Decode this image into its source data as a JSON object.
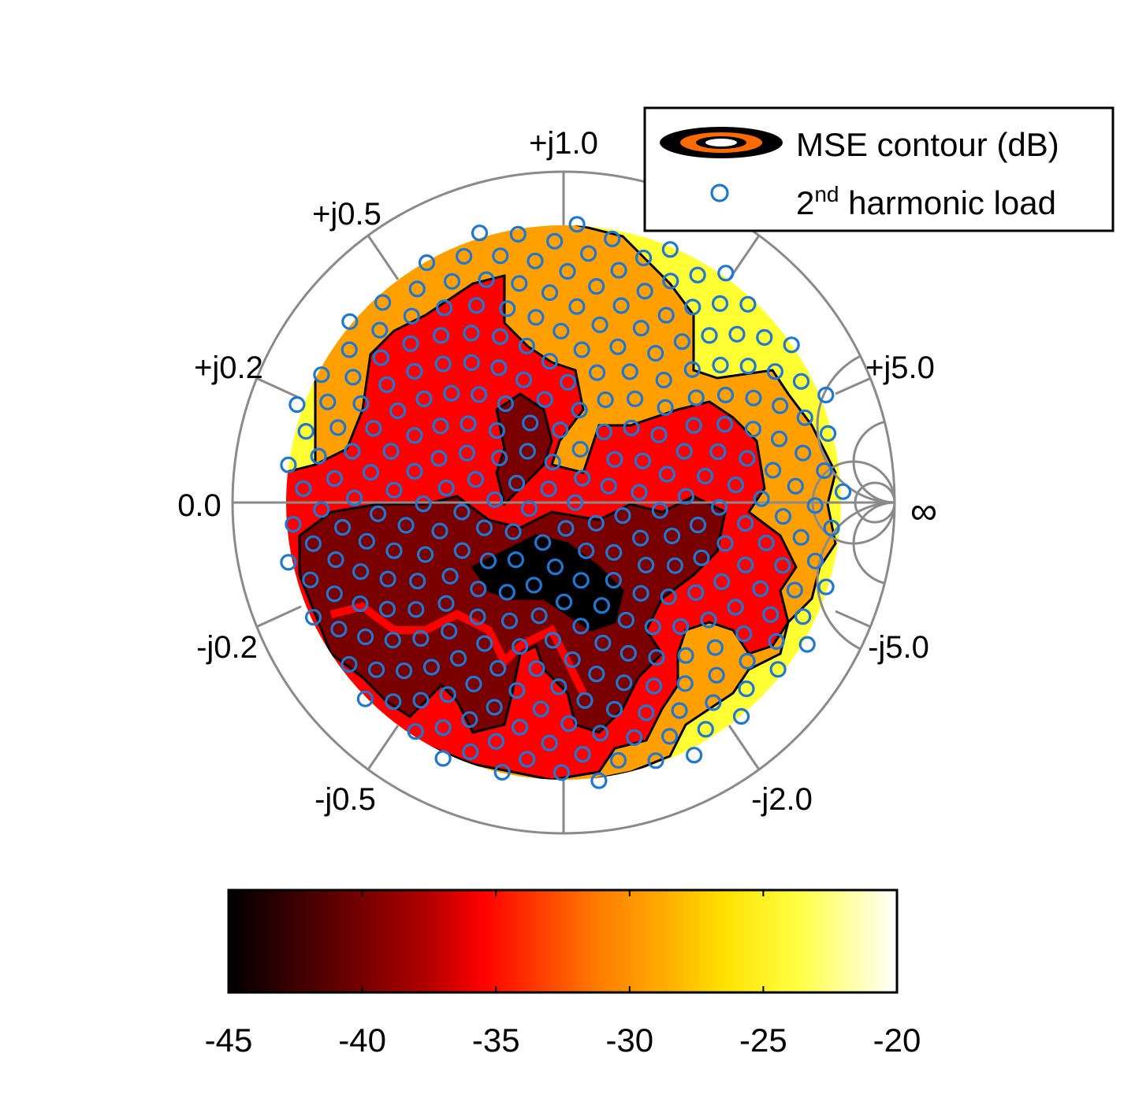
{
  "chart_data": {
    "type": "heatmap",
    "subtype": "smith-chart-contour",
    "title": "",
    "smith_axis_labels": {
      "top": "+j1.0",
      "upper_left": "+j0.5",
      "left_upper": "+j0.2",
      "left": "0.0",
      "left_lower": "-j0.2",
      "lower_left": "-j0.5",
      "lower_right": "-j2.0",
      "right_lower": "-j5.0",
      "right_upper": "+j5.0",
      "right": "∞"
    },
    "legend": {
      "placement": "top-right",
      "contour_label": "MSE contour (dB)",
      "marker_label_base": "2",
      "marker_label_sup": "nd",
      "marker_label_rest": " harmonic load"
    },
    "colorbar": {
      "label": "",
      "ticks": [
        "-45",
        "-40",
        "-35",
        "-30",
        "-25",
        "-20"
      ],
      "range": [
        -45,
        -20
      ],
      "colormap": "hot"
    },
    "contour_levels_db": [
      -40,
      -35,
      -30,
      -25
    ],
    "sample_grid": {
      "count": 299,
      "max_gamma": 0.86,
      "description": "2nd harmonic load points sampled uniformly inside |Γ| ≤ 0.86"
    },
    "colors": {
      "below_-40": "#000000",
      "-40_to_-35": "#7a0000",
      "-35_to_-30": "#ff0000",
      "-30_to_-25": "#ffa000",
      "-25_to_-20": "#ffff33",
      "marker": "#1f77d4",
      "grid": "#8a8a8a"
    }
  }
}
